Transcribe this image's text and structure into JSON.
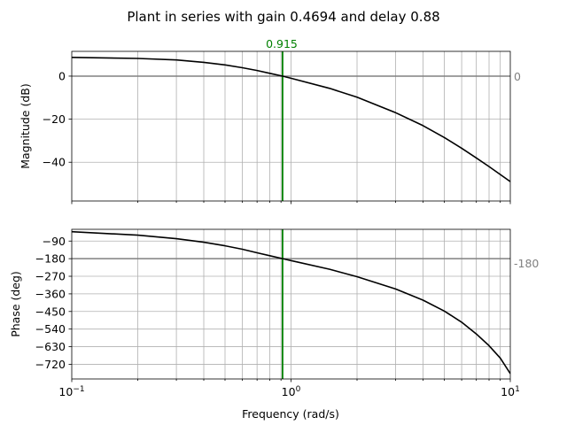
{
  "chart_data": {
    "type": "line",
    "title": "Plant in series with gain 0.4694 and delay 0.88",
    "xlabel": "Frequency (rad/s)",
    "xscale": "log",
    "xlim": [
      0.1,
      10
    ],
    "x_ticks": [
      {
        "value": 0.1,
        "base": "10",
        "exp": "−1"
      },
      {
        "value": 1,
        "base": "10",
        "exp": "0"
      },
      {
        "value": 10,
        "base": "10",
        "exp": "1"
      }
    ],
    "grid": true,
    "crossover": {
      "value": 0.915,
      "label": "0.915",
      "color": "#008000"
    },
    "magnitude": {
      "ylabel": "Magnitude (dB)",
      "ylim": [
        -58,
        11.5
      ],
      "yticks": [
        0,
        -20,
        -40
      ],
      "ytick_labels": [
        "0",
        "−20",
        "−40"
      ],
      "reference": {
        "value": 0,
        "label": "0",
        "color": "#808080"
      },
      "series": [
        {
          "x": [
            0.1,
            0.2,
            0.3,
            0.4,
            0.5,
            0.6,
            0.7,
            0.8,
            0.915,
            1.0,
            1.5,
            2.0,
            3.0,
            4.0,
            5.0,
            6.0,
            7.0,
            8.0,
            10.0
          ],
          "y": [
            8.7,
            8.2,
            7.5,
            6.4,
            5.2,
            3.9,
            2.6,
            1.3,
            0,
            -1.0,
            -5.7,
            -9.8,
            -17.0,
            -23.0,
            -28.5,
            -33.5,
            -38.0,
            -42.0,
            -49.0
          ]
        }
      ]
    },
    "phase": {
      "ylabel": "Phase (deg)",
      "ylim": [
        -795,
        -30
      ],
      "yticks": [
        -90,
        -180,
        -270,
        -360,
        -450,
        -540,
        -630,
        -720
      ],
      "ytick_labels": [
        "−90",
        "−180",
        "−270",
        "−360",
        "−450",
        "−540",
        "−630",
        "−720"
      ],
      "reference": {
        "value": -180,
        "label": "-180",
        "color": "#808080"
      },
      "series": [
        {
          "x": [
            0.1,
            0.2,
            0.3,
            0.4,
            0.5,
            0.6,
            0.7,
            0.8,
            0.915,
            1.0,
            1.5,
            2.0,
            3.0,
            4.0,
            5.0,
            6.0,
            7.0,
            8.0,
            9.0,
            10.0
          ],
          "y": [
            -42,
            -60,
            -78,
            -96,
            -114,
            -132,
            -150,
            -165,
            -180,
            -190,
            -234,
            -272,
            -335,
            -392,
            -448,
            -505,
            -565,
            -625,
            -688,
            -768
          ]
        }
      ]
    },
    "colors": {
      "curve": "#000000",
      "grid": "#b0b0b0",
      "marker": "#008000",
      "reference": "#808080"
    }
  }
}
